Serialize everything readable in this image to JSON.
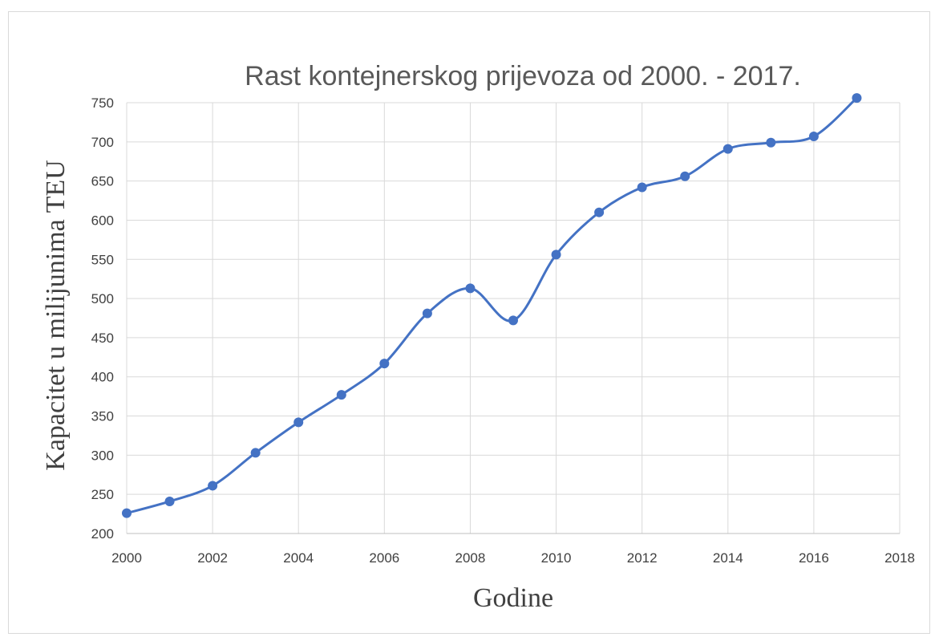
{
  "chart_data": {
    "type": "scatter",
    "title": "Rast kontejnerskog prijevoza od 2000. - 2017.",
    "xlabel": "Godine",
    "ylabel": "Kapacitet u milijunima TEU",
    "xlim": [
      2000,
      2018
    ],
    "ylim": [
      200,
      750
    ],
    "x_ticks": [
      2000,
      2002,
      2004,
      2006,
      2008,
      2010,
      2012,
      2014,
      2016,
      2018
    ],
    "y_ticks": [
      200,
      250,
      300,
      350,
      400,
      450,
      500,
      550,
      600,
      650,
      700,
      750
    ],
    "grid": true,
    "smooth_line": true,
    "markers": true,
    "line_color": "#4472c4",
    "series": [
      {
        "x": [
          2000,
          2001,
          2002,
          2003,
          2004,
          2005,
          2006,
          2007,
          2008,
          2009,
          2010,
          2011,
          2012,
          2013,
          2014,
          2015,
          2016,
          2017
        ],
        "y": [
          226,
          241,
          261,
          303,
          342,
          377,
          417,
          481,
          513,
          472,
          556,
          610,
          642,
          656,
          691,
          699,
          707,
          756
        ]
      }
    ]
  }
}
